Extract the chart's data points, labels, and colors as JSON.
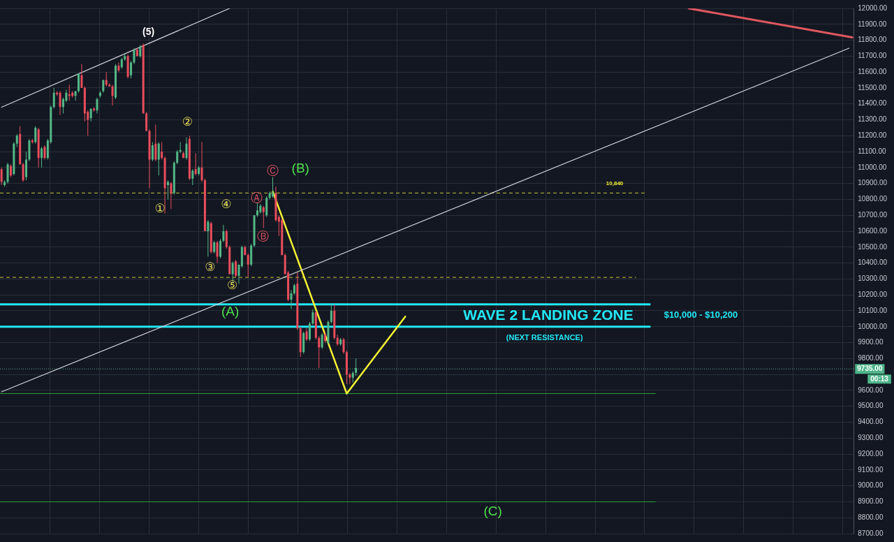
{
  "chart_data": {
    "type": "candlestick",
    "categories": [
      null,
      null,
      null,
      null,
      null,
      null,
      null,
      null,
      null,
      null,
      null,
      null,
      null,
      null,
      null,
      null,
      null,
      null,
      null,
      null,
      null,
      null,
      null,
      null,
      null,
      null,
      null,
      null,
      null,
      null,
      null,
      null,
      null,
      null,
      null,
      null,
      null,
      null,
      null,
      null,
      null,
      null,
      null,
      null,
      null,
      null,
      null,
      null,
      null,
      null,
      null,
      null,
      null,
      null,
      null,
      null,
      null,
      null,
      null,
      null,
      null,
      null,
      null,
      null,
      null,
      null,
      null,
      null,
      null,
      null,
      null,
      null,
      null,
      null,
      null,
      null,
      null,
      null,
      null,
      null,
      null,
      null,
      null,
      null,
      null,
      null,
      null,
      null,
      null,
      null,
      null,
      null,
      null,
      null,
      null,
      null,
      null,
      null,
      null,
      null,
      null,
      null,
      null,
      null,
      null,
      null,
      null,
      null,
      null,
      null,
      null,
      null,
      null,
      null,
      null,
      null,
      null,
      null,
      null,
      null,
      null,
      null,
      null,
      null,
      null,
      null,
      null,
      null,
      null,
      null,
      null,
      null,
      null,
      null,
      null,
      null,
      null,
      null,
      null,
      null,
      null,
      null,
      null,
      null,
      null,
      null,
      null,
      null,
      null,
      null,
      null,
      null,
      null,
      null,
      null,
      null,
      null,
      null,
      null,
      null,
      null,
      null,
      null,
      null,
      null,
      null,
      null,
      null,
      null,
      null,
      null,
      null,
      null,
      null,
      null,
      null,
      null,
      null,
      null,
      null,
      null,
      null,
      null,
      null,
      null,
      null,
      null,
      null,
      null,
      null,
      null,
      null,
      null,
      null,
      null,
      null,
      null,
      null,
      null,
      null,
      null,
      null,
      null,
      null,
      null,
      null,
      null,
      null,
      null,
      null,
      null,
      null,
      null,
      null,
      null,
      null,
      null,
      null,
      null,
      null,
      null,
      null,
      null,
      null,
      null,
      null,
      null,
      null,
      null,
      null,
      null,
      null,
      null,
      null,
      null,
      null,
      null,
      null,
      null,
      null,
      null,
      null,
      null,
      null,
      null,
      null,
      null,
      null,
      null,
      null,
      null,
      null,
      null,
      null,
      null,
      null,
      null,
      null,
      null,
      null,
      null,
      null,
      null,
      null,
      null,
      null,
      null,
      null,
      null,
      null,
      null,
      null,
      null,
      null,
      null,
      null,
      null
    ],
    "ohlc": [
      [
        10990,
        11000,
        10890,
        10910
      ],
      [
        10890,
        10920,
        10880,
        10910
      ],
      [
        10910,
        11030,
        10900,
        11020
      ],
      [
        11010,
        11020,
        10940,
        10950
      ],
      [
        10960,
        11160,
        10950,
        11150
      ],
      [
        11150,
        11210,
        11130,
        11200
      ],
      [
        11210,
        11260,
        11020,
        11020
      ],
      [
        11020,
        11030,
        10910,
        10920
      ],
      [
        10940,
        11100,
        10920,
        11050
      ],
      [
        11050,
        11180,
        11040,
        11170
      ],
      [
        11170,
        11180,
        11150,
        11160
      ],
      [
        11160,
        11260,
        11150,
        11250
      ],
      [
        11240,
        11250,
        11000,
        11060
      ],
      [
        11060,
        11130,
        11000,
        11120
      ],
      [
        11130,
        11140,
        11050,
        11060
      ],
      [
        11060,
        11180,
        11050,
        11170
      ],
      [
        11160,
        11390,
        11150,
        11380
      ],
      [
        11380,
        11500,
        11370,
        11470
      ],
      [
        11470,
        11480,
        11450,
        11460
      ],
      [
        11470,
        11480,
        11330,
        11380
      ],
      [
        11380,
        11440,
        11340,
        11430
      ],
      [
        11420,
        11490,
        11410,
        11470
      ],
      [
        11460,
        11520,
        11420,
        11450
      ],
      [
        11470,
        11480,
        11440,
        11450
      ],
      [
        11450,
        11480,
        11420,
        11480
      ],
      [
        11480,
        11590,
        11470,
        11590
      ],
      [
        11580,
        11650,
        11500,
        11500
      ],
      [
        11500,
        11510,
        11290,
        11340
      ],
      [
        11350,
        11360,
        11200,
        11300
      ],
      [
        11310,
        11370,
        11290,
        11370
      ],
      [
        11370,
        11380,
        11350,
        11360
      ],
      [
        11360,
        11440,
        11340,
        11430
      ],
      [
        11450,
        11480,
        11440,
        11470
      ],
      [
        11480,
        11550,
        11470,
        11550
      ],
      [
        11550,
        11600,
        11510,
        11520
      ],
      [
        11520,
        11530,
        11510,
        11510
      ],
      [
        11510,
        11520,
        11390,
        11450
      ],
      [
        11440,
        11650,
        11430,
        11640
      ],
      [
        11640,
        11660,
        11600,
        11610
      ],
      [
        11630,
        11690,
        11620,
        11680
      ],
      [
        11680,
        11710,
        11670,
        11700
      ],
      [
        11700,
        11710,
        11560,
        11570
      ],
      [
        11580,
        11670,
        11560,
        11660
      ],
      [
        11660,
        11750,
        11650,
        11740
      ],
      [
        11740,
        11750,
        11700,
        11700
      ],
      [
        11700,
        11770,
        11690,
        11760
      ],
      [
        11770,
        11780,
        11340,
        11340
      ],
      [
        11340,
        11350,
        11230,
        11230
      ],
      [
        11230,
        11240,
        10870,
        11050
      ],
      [
        11050,
        11160,
        11040,
        11140
      ],
      [
        11150,
        11270,
        11040,
        11050
      ],
      [
        11050,
        11160,
        10950,
        11150
      ],
      [
        11100,
        11160,
        11050,
        11060
      ],
      [
        11060,
        11070,
        10710,
        10870
      ],
      [
        10890,
        10920,
        10800,
        10910
      ],
      [
        10900,
        10910,
        10740,
        10840
      ],
      [
        10840,
        11040,
        10830,
        11030
      ],
      [
        11030,
        11110,
        11020,
        11100
      ],
      [
        11100,
        11160,
        11090,
        11110
      ],
      [
        11090,
        11100,
        11060,
        11060
      ],
      [
        11060,
        11190,
        11050,
        11150
      ],
      [
        11180,
        11200,
        10920,
        10930
      ],
      [
        10930,
        10990,
        10890,
        10980
      ],
      [
        10990,
        11090,
        10950,
        10960
      ],
      [
        10960,
        11010,
        10950,
        11000
      ],
      [
        11000,
        11160,
        10910,
        10920
      ],
      [
        10920,
        10930,
        10600,
        10600
      ],
      [
        10600,
        10670,
        10440,
        10660
      ],
      [
        10650,
        10660,
        10460,
        10470
      ],
      [
        10470,
        10540,
        10460,
        10530
      ],
      [
        10530,
        10540,
        10400,
        10440
      ],
      [
        10440,
        10550,
        10430,
        10540
      ],
      [
        10540,
        10640,
        10530,
        10600
      ],
      [
        10600,
        10610,
        10490,
        10500
      ],
      [
        10500,
        10510,
        10330,
        10330
      ],
      [
        10330,
        10410,
        10280,
        10400
      ],
      [
        10410,
        10420,
        10310,
        10320
      ],
      [
        10320,
        10390,
        10270,
        10390
      ],
      [
        10380,
        10510,
        10370,
        10500
      ],
      [
        10500,
        10510,
        10450,
        10450
      ],
      [
        10450,
        10460,
        10310,
        10390
      ],
      [
        10390,
        10520,
        10380,
        10510
      ],
      [
        10510,
        10700,
        10500,
        10700
      ],
      [
        10700,
        10780,
        10690,
        10730
      ],
      [
        10720,
        10770,
        10710,
        10760
      ],
      [
        10750,
        10760,
        10620,
        10720
      ],
      [
        10700,
        10820,
        10690,
        10810
      ],
      [
        10810,
        10850,
        10800,
        10840
      ],
      [
        10820,
        10940,
        10810,
        10840
      ],
      [
        10840,
        10880,
        10660,
        10670
      ],
      [
        10690,
        10700,
        10570,
        10660
      ],
      [
        10670,
        10680,
        10450,
        10450
      ],
      [
        10450,
        10460,
        10330,
        10330
      ],
      [
        10340,
        10350,
        10160,
        10170
      ],
      [
        10170,
        10230,
        10110,
        10210
      ],
      [
        10210,
        10270,
        10200,
        10260
      ],
      [
        10270,
        10340,
        9980,
        9990
      ],
      [
        9990,
        10000,
        9810,
        9840
      ],
      [
        9840,
        9970,
        9830,
        9960
      ],
      [
        9970,
        9990,
        9910,
        9920
      ],
      [
        9920,
        10030,
        9910,
        10020
      ],
      [
        10020,
        10110,
        10010,
        10090
      ],
      [
        10090,
        10100,
        9920,
        9930
      ],
      [
        9930,
        9940,
        9740,
        9870
      ],
      [
        9870,
        9960,
        9860,
        9950
      ],
      [
        9950,
        9970,
        9900,
        9910
      ],
      [
        9900,
        10040,
        9890,
        10030
      ],
      [
        10030,
        10140,
        10020,
        10100
      ],
      [
        10100,
        10140,
        9920,
        9930
      ],
      [
        9930,
        9950,
        9880,
        9890
      ],
      [
        9890,
        9930,
        9880,
        9920
      ],
      [
        9920,
        9930,
        9830,
        9840
      ],
      [
        9840,
        9850,
        9640,
        9700
      ],
      [
        9700,
        9710,
        9640,
        9680
      ],
      [
        9680,
        9720,
        9650,
        9710
      ],
      [
        9710,
        9800,
        9690,
        9740
      ],
      null,
      null,
      null,
      null,
      null,
      null,
      null,
      null,
      null,
      null,
      null,
      null,
      null,
      null,
      null,
      null,
      null,
      null,
      null,
      null,
      null,
      null,
      null,
      null,
      null,
      null,
      null,
      null,
      null,
      null,
      null,
      null,
      null,
      null,
      null,
      null,
      null,
      null,
      null,
      null,
      null,
      null,
      null,
      null,
      null,
      null,
      null,
      null,
      null,
      null,
      null,
      null,
      null,
      null,
      null,
      null,
      null,
      null,
      null,
      null,
      null,
      null,
      null,
      null,
      null,
      null,
      null,
      null,
      null,
      null,
      null,
      null,
      null,
      null,
      null,
      null,
      null,
      null,
      null,
      null,
      null,
      null,
      null,
      null,
      null,
      null,
      null,
      null,
      null,
      null,
      null,
      null,
      null,
      null,
      null,
      null,
      null,
      null,
      null,
      null,
      null,
      null,
      null,
      null,
      null,
      null,
      null,
      null,
      null,
      null,
      null,
      null,
      null,
      null,
      null,
      null,
      null,
      null,
      null,
      null,
      null,
      null,
      null,
      null,
      null,
      null,
      null,
      null,
      null,
      null,
      null,
      null,
      null,
      null,
      null,
      null,
      null,
      null,
      null,
      null,
      null,
      null,
      null,
      null,
      null,
      null,
      null,
      null,
      null,
      null,
      null,
      null,
      null,
      null,
      null,
      null,
      null,
      null,
      null,
      null,
      null
    ],
    "colors": [
      "#eb4d5c",
      "#53b987",
      "#53b987",
      "#eb4d5c",
      "#53b987",
      "#53b987",
      "#eb4d5c",
      "#eb4d5c",
      "#53b987",
      "#53b987",
      "#eb4d5c",
      "#53b987",
      "#eb4d5c",
      "#53b987",
      "#eb4d5c",
      "#53b987",
      "#53b987",
      "#53b987",
      "#eb4d5c",
      "#eb4d5c",
      "#53b987",
      "#53b987",
      "#eb4d5c",
      "#eb4d5c",
      "#53b987",
      "#53b987",
      "#eb4d5c",
      "#eb4d5c",
      "#eb4d5c",
      "#53b987",
      "#eb4d5c",
      "#53b987",
      "#53b987",
      "#53b987",
      "#eb4d5c",
      "#eb4d5c",
      "#eb4d5c",
      "#53b987",
      "#eb4d5c",
      "#53b987",
      "#53b987",
      "#eb4d5c",
      "#53b987",
      "#53b987",
      "#eb4d5c",
      "#53b987",
      "#eb4d5c",
      "#eb4d5c",
      "#eb4d5c",
      "#53b987",
      "#eb4d5c",
      "#53b987",
      "#eb4d5c",
      "#eb4d5c",
      "#53b987",
      "#eb4d5c",
      "#53b987",
      "#53b987",
      "#53b987",
      "#eb4d5c",
      "#53b987",
      "#eb4d5c",
      "#53b987",
      "#eb4d5c",
      "#53b987",
      "#eb4d5c",
      "#eb4d5c",
      "#53b987",
      "#eb4d5c",
      "#53b987",
      "#eb4d5c",
      "#53b987",
      "#53b987",
      "#eb4d5c",
      "#eb4d5c",
      "#53b987",
      "#eb4d5c",
      "#53b987",
      "#53b987",
      "#eb4d5c",
      "#eb4d5c",
      "#53b987",
      "#53b987",
      "#53b987",
      "#53b987",
      "#eb4d5c",
      "#53b987",
      "#53b987",
      "#53b987",
      "#eb4d5c",
      "#eb4d5c",
      "#eb4d5c",
      "#eb4d5c",
      "#eb4d5c",
      "#53b987",
      "#53b987",
      "#eb4d5c",
      "#eb4d5c",
      "#53b987",
      "#eb4d5c",
      "#53b987",
      "#53b987",
      "#eb4d5c",
      "#eb4d5c",
      "#53b987",
      "#eb4d5c",
      "#53b987",
      "#53b987",
      "#eb4d5c",
      "#eb4d5c",
      "#53b987",
      "#eb4d5c",
      "#eb4d5c",
      "#eb4d5c",
      "#53b987",
      "#53b987",
      null,
      null,
      null,
      null,
      null,
      null,
      null,
      null,
      null,
      null,
      null,
      null,
      null,
      null,
      null,
      null,
      null,
      null,
      null,
      null,
      null,
      null,
      null,
      null,
      null,
      null,
      null,
      null,
      null,
      null,
      null,
      null,
      null,
      null,
      null,
      null,
      null,
      null,
      null,
      null,
      null,
      null,
      null,
      null,
      null,
      null,
      null,
      null,
      null,
      null,
      null,
      null,
      null,
      null,
      null,
      null,
      null,
      null,
      null,
      null,
      null,
      null,
      null,
      null,
      null,
      null,
      null,
      null,
      null,
      null,
      null,
      null,
      null,
      null,
      null,
      null,
      null,
      null,
      null,
      null,
      null,
      null,
      null,
      null,
      null,
      null,
      null,
      null,
      null,
      null,
      null,
      null,
      null,
      null,
      null,
      null,
      null,
      null,
      null,
      null,
      null,
      null,
      null,
      null,
      null,
      null,
      null,
      null,
      null,
      null,
      null,
      null,
      null,
      null,
      null,
      null,
      null,
      null,
      null,
      null,
      null,
      null,
      null,
      null,
      null,
      null,
      null,
      null,
      null,
      null,
      null,
      null,
      null,
      null,
      null,
      null,
      null,
      null,
      null,
      null,
      null,
      null,
      null,
      null,
      null,
      null,
      null,
      null,
      null,
      null,
      null,
      null,
      null,
      null,
      null,
      null,
      null,
      null,
      null,
      null,
      null
    ],
    "series": [
      {
        "type": "line",
        "color": "#d1d4dc",
        "values": [
          11379,
          null,
          null,
          null,
          null,
          null,
          null,
          null,
          null,
          null,
          null,
          null,
          null,
          null,
          null,
          null,
          null,
          null,
          null,
          null,
          null,
          null,
          null,
          null,
          null,
          null,
          null,
          null,
          null,
          null,
          null,
          null,
          null,
          null,
          null,
          null,
          null,
          null,
          null,
          null,
          null,
          null,
          null,
          null,
          null,
          null,
          null,
          null,
          null,
          null,
          null,
          null,
          null,
          null,
          null,
          null,
          null,
          null,
          null,
          null,
          null,
          null,
          null,
          null,
          null,
          null,
          null,
          null,
          null,
          null,
          null,
          null,
          null,
          null,
          12000,
          null,
          null,
          null,
          null,
          null,
          null,
          null,
          null,
          null,
          null,
          null,
          null,
          null,
          null,
          null,
          null,
          null,
          null,
          null,
          null,
          null,
          null,
          null,
          null,
          null,
          null,
          null,
          null,
          null,
          null,
          null,
          null,
          null,
          null,
          null,
          null,
          null,
          null,
          null,
          null,
          null,
          null,
          null,
          null,
          null,
          null,
          null,
          null,
          null,
          null,
          null,
          null,
          null,
          null,
          null,
          null,
          null,
          null,
          null,
          null,
          null,
          null,
          null,
          null,
          null,
          null,
          null,
          null,
          null,
          null,
          null,
          null,
          null,
          null,
          null,
          null,
          null,
          null,
          null,
          null,
          null,
          null,
          null,
          null,
          null,
          null,
          null,
          null,
          null,
          null,
          null,
          null,
          null,
          null,
          null,
          null,
          null,
          null,
          null,
          null,
          null,
          null,
          null,
          null,
          null,
          null,
          null,
          null,
          null,
          null,
          null,
          null,
          null,
          null,
          null,
          null,
          null,
          null,
          null,
          null,
          null,
          null,
          null,
          null,
          null,
          null,
          null,
          null,
          null,
          null,
          null,
          null,
          null,
          null,
          null,
          null,
          null,
          null,
          null,
          null,
          null,
          null,
          null,
          null,
          null,
          null,
          null,
          null,
          null,
          null,
          null,
          null,
          null,
          null,
          null,
          null,
          null,
          null,
          null,
          null,
          null,
          null,
          null,
          null,
          null,
          null,
          null,
          null,
          null,
          null,
          null,
          null,
          null,
          null,
          null,
          null,
          null,
          null,
          null,
          null,
          null,
          null,
          null,
          null,
          null,
          null,
          null,
          null,
          null,
          null,
          null,
          null,
          null,
          null,
          null,
          null,
          null,
          null,
          null,
          null,
          null,
          null
        ]
      },
      {
        "type": "line",
        "color": "#d1d4dc",
        "values": [
          9591,
          null,
          null,
          null,
          null,
          null,
          null,
          null,
          null,
          null,
          null,
          null,
          null,
          null,
          null,
          null,
          null,
          null,
          null,
          null,
          null,
          null,
          null,
          null,
          null,
          null,
          null,
          null,
          null,
          null,
          null,
          null,
          null,
          null,
          null,
          null,
          null,
          null,
          null,
          null,
          null,
          null,
          null,
          null,
          null,
          null,
          null,
          null,
          null,
          null,
          null,
          null,
          null,
          null,
          null,
          null,
          null,
          null,
          null,
          null,
          null,
          null,
          null,
          null,
          null,
          null,
          null,
          null,
          null,
          null,
          null,
          null,
          null,
          null,
          null,
          null,
          null,
          null,
          null,
          null,
          null,
          null,
          null,
          null,
          null,
          null,
          null,
          null,
          null,
          null,
          null,
          null,
          null,
          null,
          null,
          null,
          null,
          null,
          null,
          null,
          null,
          null,
          null,
          null,
          null,
          null,
          null,
          null,
          null,
          null,
          null,
          null,
          null,
          null,
          null,
          null,
          null,
          null,
          null,
          null,
          null,
          null,
          null,
          null,
          null,
          null,
          null,
          null,
          null,
          null,
          null,
          null,
          null,
          null,
          null,
          null,
          null,
          null,
          null,
          null,
          null,
          null,
          null,
          null,
          null,
          null,
          null,
          null,
          null,
          null,
          null,
          null,
          null,
          null,
          null,
          null,
          null,
          null,
          null,
          null,
          null,
          null,
          null,
          null,
          null,
          null,
          null,
          null,
          null,
          null,
          null,
          null,
          null,
          null,
          null,
          null,
          null,
          null,
          null,
          null,
          null,
          null,
          null,
          null,
          null,
          null,
          null,
          null,
          null,
          null,
          null,
          null,
          null,
          null,
          null,
          null,
          null,
          null,
          null,
          null,
          null,
          null,
          null,
          null,
          null,
          null,
          null,
          null,
          null,
          null,
          null,
          null,
          null,
          null,
          null,
          null,
          null,
          null,
          null,
          null,
          null,
          null,
          null,
          null,
          null,
          null,
          null,
          null,
          null,
          null,
          null,
          null,
          null,
          null,
          null,
          null,
          null,
          null,
          null,
          null,
          null,
          null,
          null,
          null,
          null,
          null,
          null,
          null,
          null,
          null,
          null,
          null,
          null,
          null,
          null,
          null,
          null,
          null,
          null,
          null,
          null,
          null,
          null,
          null,
          null,
          null,
          null,
          null,
          null,
          null,
          null,
          null,
          null,
          null,
          null,
          11750,
          null
        ]
      },
      {
        "type": "line",
        "color": "#e0575f",
        "values": [
          null,
          null,
          null,
          null,
          null,
          null,
          null,
          null,
          null,
          null,
          null,
          null,
          null,
          null,
          null,
          null,
          null,
          null,
          null,
          null,
          null,
          null,
          null,
          null,
          null,
          null,
          null,
          null,
          null,
          null,
          null,
          null,
          null,
          null,
          null,
          null,
          null,
          null,
          null,
          null,
          null,
          null,
          null,
          null,
          null,
          null,
          null,
          null,
          null,
          null,
          null,
          null,
          null,
          null,
          null,
          null,
          null,
          null,
          null,
          null,
          null,
          null,
          null,
          null,
          null,
          null,
          null,
          null,
          null,
          null,
          null,
          null,
          null,
          null,
          null,
          null,
          null,
          null,
          null,
          null,
          null,
          null,
          null,
          null,
          null,
          null,
          null,
          null,
          null,
          null,
          null,
          null,
          null,
          null,
          null,
          null,
          null,
          null,
          null,
          null,
          null,
          null,
          null,
          null,
          null,
          null,
          null,
          null,
          null,
          null,
          null,
          null,
          null,
          null,
          null,
          null,
          null,
          null,
          null,
          null,
          null,
          null,
          null,
          null,
          null,
          null,
          null,
          null,
          null,
          null,
          null,
          null,
          null,
          null,
          null,
          null,
          null,
          null,
          null,
          null,
          null,
          null,
          null,
          null,
          null,
          null,
          null,
          null,
          null,
          null,
          null,
          null,
          null,
          null,
          null,
          null,
          null,
          null,
          null,
          null,
          null,
          null,
          null,
          null,
          null,
          null,
          null,
          null,
          null,
          null,
          null,
          null,
          null,
          null,
          null,
          null,
          null,
          null,
          null,
          null,
          null,
          null,
          null,
          null,
          null,
          null,
          null,
          null,
          null,
          null,
          null,
          null,
          null,
          null,
          null,
          null,
          null,
          null,
          null,
          null,
          null,
          null,
          null,
          null,
          null,
          null,
          null,
          null,
          null,
          null,
          null,
          null,
          null,
          null,
          null,
          null,
          null,
          null,
          null,
          null,
          null,
          null,
          null,
          12000,
          null,
          null,
          null,
          null,
          null,
          null,
          null,
          null,
          null,
          null,
          null,
          null,
          null,
          null,
          null,
          null,
          null,
          null,
          null,
          null,
          null,
          null,
          null,
          null,
          null,
          null,
          null,
          null,
          null,
          null,
          null,
          null,
          null,
          null,
          null,
          null,
          null,
          null,
          null,
          null,
          null,
          null,
          null,
          null,
          null,
          null,
          null,
          null,
          null,
          null,
          null,
          null,
          11818
        ]
      },
      {
        "type": "line",
        "color": "#f5f532",
        "values": [
          null,
          null,
          null,
          null,
          null,
          null,
          null,
          null,
          null,
          null,
          null,
          null,
          null,
          null,
          null,
          null,
          null,
          null,
          null,
          null,
          null,
          null,
          null,
          null,
          null,
          null,
          null,
          null,
          null,
          null,
          null,
          null,
          null,
          null,
          null,
          null,
          null,
          null,
          null,
          null,
          null,
          null,
          null,
          null,
          null,
          null,
          null,
          null,
          null,
          null,
          null,
          null,
          null,
          null,
          null,
          null,
          null,
          null,
          null,
          null,
          null,
          null,
          null,
          null,
          null,
          null,
          null,
          null,
          null,
          null,
          null,
          null,
          null,
          null,
          null,
          null,
          null,
          null,
          null,
          null,
          null,
          null,
          null,
          null,
          null,
          null,
          null,
          null,
          10850,
          null,
          null,
          null,
          null,
          null,
          null,
          null,
          null,
          null,
          null,
          null,
          null,
          null,
          null,
          null,
          null,
          null,
          null,
          null,
          null,
          null,
          null,
          null,
          9580,
          null,
          null,
          null,
          null,
          null,
          null,
          null,
          null,
          null,
          null,
          null,
          null,
          null,
          null,
          null,
          null,
          null,
          null,
          10064,
          null,
          null,
          null,
          null,
          null,
          null,
          null,
          null,
          null,
          null,
          null,
          null,
          null,
          null,
          null,
          null,
          null,
          null,
          null,
          null,
          null,
          null,
          null,
          null,
          null,
          null,
          null,
          null,
          null,
          null,
          null,
          null,
          null,
          null,
          null,
          null,
          null,
          null,
          null,
          null,
          null,
          null,
          null,
          null,
          null,
          null,
          null,
          null,
          null,
          null,
          null,
          null,
          null,
          null,
          null,
          null,
          null,
          null,
          null,
          null,
          null,
          null,
          null,
          null,
          null,
          null,
          null,
          null,
          null,
          null,
          null,
          null,
          null,
          null,
          null,
          null,
          null,
          null,
          null,
          null,
          null,
          null,
          null,
          null,
          null,
          null,
          null,
          null,
          null,
          null,
          null,
          null,
          null,
          null,
          null,
          null,
          null,
          null,
          null,
          null,
          null,
          null,
          null,
          null,
          null,
          null,
          null,
          null,
          null,
          null,
          null,
          null,
          null,
          null,
          null,
          null,
          null,
          null,
          null,
          null,
          null,
          null,
          null,
          null,
          null,
          null,
          null,
          null,
          null,
          null,
          null,
          null,
          null,
          null,
          null,
          null,
          null,
          null,
          null,
          null,
          null,
          null,
          null,
          null,
          null
        ]
      }
    ],
    "ylim": [
      8700,
      12000
    ],
    "yticks": [
      {
        "value": 8700,
        "label": "8700.00"
      },
      {
        "value": 8800,
        "label": "8800.00"
      },
      {
        "value": 8900,
        "label": "8900.00"
      },
      {
        "value": 9000,
        "label": "9000.00"
      },
      {
        "value": 9100,
        "label": "9100.00"
      },
      {
        "value": 9200,
        "label": "9200.00"
      },
      {
        "value": 9300,
        "label": "9300.00"
      },
      {
        "value": 9400,
        "label": "9400.00"
      },
      {
        "value": 9500,
        "label": "9500.00"
      },
      {
        "value": 9600,
        "label": "9600.00"
      },
      {
        "value": 9700,
        "label": null
      },
      {
        "value": 9800,
        "label": "9800.00"
      },
      {
        "value": 9900,
        "label": "9900.00"
      },
      {
        "value": 10000,
        "label": "10000.00"
      },
      {
        "value": 10100,
        "label": "10100.00"
      },
      {
        "value": 10200,
        "label": "10200.00"
      },
      {
        "value": 10300,
        "label": "10300.00"
      },
      {
        "value": 10400,
        "label": "10400.00"
      },
      {
        "value": 10500,
        "label": "10500.00"
      },
      {
        "value": 10600,
        "label": "10600.00"
      },
      {
        "value": 10700,
        "label": "10700.00"
      },
      {
        "value": 10800,
        "label": "10800.00"
      },
      {
        "value": 10900,
        "label": "10900.00"
      },
      {
        "value": 11000,
        "label": "11000.00"
      },
      {
        "value": 11100,
        "label": "11100.00"
      },
      {
        "value": 11200,
        "label": "11200.00"
      },
      {
        "value": 11300,
        "label": "11300.00"
      },
      {
        "value": 11400,
        "label": "11400.00"
      },
      {
        "value": 11500,
        "label": "11500.00"
      },
      {
        "value": 11600,
        "label": "11600.00"
      },
      {
        "value": 11700,
        "label": "11700.00"
      },
      {
        "value": 11800,
        "label": "11800.00"
      },
      {
        "value": 11900,
        "label": "11900.00"
      },
      {
        "value": 12000,
        "label": "12000.00"
      }
    ],
    "tick_labels": "y",
    "grid": true,
    "ref_lines": [
      {
        "axis": "y",
        "value": 10840,
        "label": "10,840",
        "color": "#c8c832",
        "line_style": "dashed"
      },
      {
        "axis": "y",
        "value": 10310,
        "color": "#c8c832",
        "line_style": "dashed"
      },
      {
        "axis": "y",
        "value": 10140,
        "color": "#22e8f5",
        "line_style": "solid"
      },
      {
        "axis": "y",
        "value": 10000,
        "color": "#22e8f5",
        "line_style": "solid"
      },
      {
        "axis": "y",
        "value": 9580,
        "color": "#2e9e3e",
        "line_style": "solid"
      },
      {
        "axis": "y",
        "value": 8900,
        "color": "#2e9e3e",
        "line_style": "solid"
      },
      {
        "axis": "y",
        "value": 9735,
        "label": "9735.00",
        "color": "#4fb58a",
        "line_style": "dotted"
      }
    ],
    "annotations": [
      "(5)",
      "②",
      "①",
      "④",
      "③",
      "⑤",
      "Ⓐ",
      "Ⓑ",
      "Ⓒ",
      "(B)",
      "(A)",
      "(C)",
      "WAVE 2 LANDING ZONE",
      "$10,000 - $10,200",
      "(NEXT RESISTANCE)",
      "00:13"
    ]
  }
}
